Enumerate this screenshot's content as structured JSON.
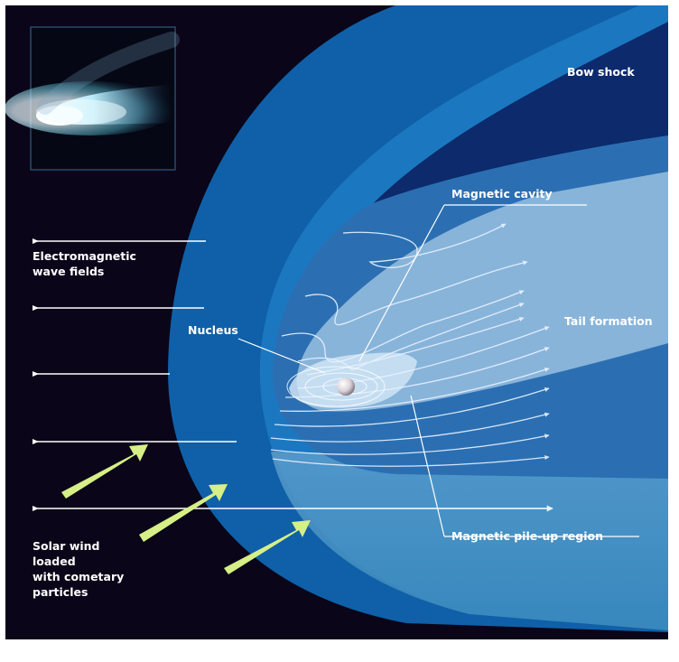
{
  "diagram": {
    "labels": {
      "bow_shock": "Bow shock",
      "magnetic_cavity": "Magnetic cavity",
      "em_wave_fields": [
        "Electromagnetic",
        "wave fields"
      ],
      "nucleus": "Nucleus",
      "tail_formation": "Tail formation",
      "solar_wind": [
        "Solar wind",
        "loaded",
        "with cometary",
        "particles"
      ],
      "pileup_region": "Magnetic pile-up region"
    },
    "colors": {
      "space_background": "#0a0518",
      "bow_shock_outer": "#0f60a8",
      "bow_shock_inner_band": "#1b78c0",
      "deep_region": "#0c2a6c",
      "tail_region": "#88b4da",
      "pileup_region": "#4e8fc6",
      "field_lines": "#e8f2ff",
      "solar_wind_arrows": "#d6ef86",
      "nucleus": "#d8d0d6"
    },
    "inset_icon": "comet-photo-icon"
  }
}
